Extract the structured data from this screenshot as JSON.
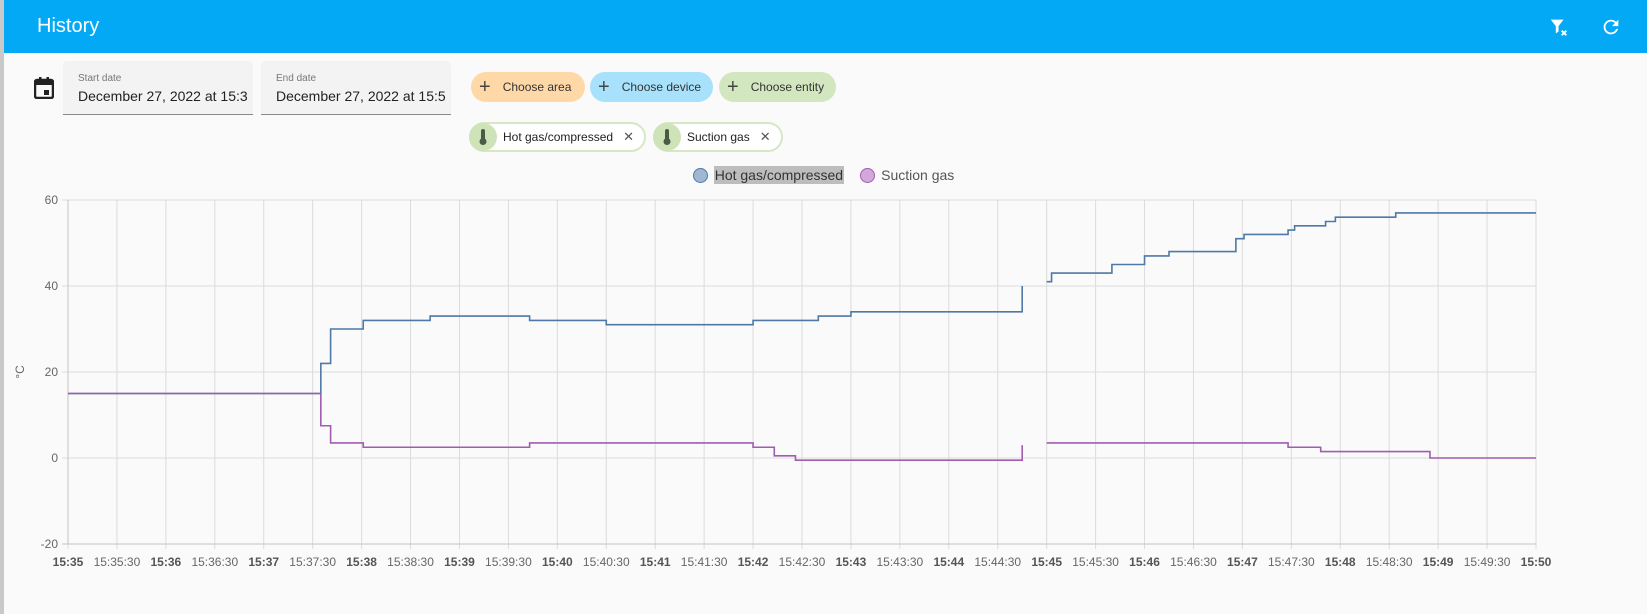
{
  "header": {
    "title": "History",
    "actions": [
      {
        "name": "clear-filter-icon",
        "label": "Clear filters"
      },
      {
        "name": "refresh-icon",
        "label": "Refresh"
      }
    ]
  },
  "filters": {
    "calendar_icon": "calendar-icon",
    "start_date": {
      "label": "Start date",
      "value": "December 27, 2022 at 15:3"
    },
    "end_date": {
      "label": "End date",
      "value": "December 27, 2022 at 15:5"
    },
    "pickers": [
      {
        "label": "Choose area",
        "color": "#ffd8a8"
      },
      {
        "label": "Choose device",
        "color": "#a8e1fb"
      },
      {
        "label": "Choose entity",
        "color": "#d2e7bf"
      }
    ],
    "entities": [
      {
        "label": "Hot gas/compressed",
        "icon": "thermometer-icon"
      },
      {
        "label": "Suction gas",
        "icon": "thermometer-icon"
      }
    ]
  },
  "legend": [
    {
      "label": "Hot gas/compressed",
      "color": "#4e79a7",
      "fill": "#9fb7d1"
    },
    {
      "label": "Suction gas",
      "color": "#a05db0",
      "fill": "#d2a8da"
    }
  ],
  "chart_data": {
    "type": "line",
    "step": true,
    "title": "",
    "xlabel": "",
    "ylabel": "°C",
    "ylim": [
      -20,
      60
    ],
    "yticks": [
      60,
      40,
      20,
      0,
      -20
    ],
    "xlim": [
      "15:35",
      "15:50"
    ],
    "xticks": [
      "15:35",
      "15:35:30",
      "15:36",
      "15:36:30",
      "15:37",
      "15:37:30",
      "15:38",
      "15:38:30",
      "15:39",
      "15:39:30",
      "15:40",
      "15:40:30",
      "15:41",
      "15:41:30",
      "15:42",
      "15:42:30",
      "15:43",
      "15:43:30",
      "15:44",
      "15:44:30",
      "15:45",
      "15:45:30",
      "15:46",
      "15:46:30",
      "15:47",
      "15:47:30",
      "15:48",
      "15:48:30",
      "15:49",
      "15:49:30",
      "15:50"
    ],
    "grid": true,
    "legend_position": "top",
    "series": [
      {
        "name": "Hot gas/compressed",
        "color": "#4e79a7",
        "segments": [
          [
            [
              "15:35:00",
              15
            ],
            [
              "15:37:35",
              22
            ],
            [
              "15:37:41",
              30
            ],
            [
              "15:38:01",
              32
            ],
            [
              "15:38:42",
              33
            ],
            [
              "15:39:43",
              32
            ],
            [
              "15:40:30",
              31
            ],
            [
              "15:42:00",
              32
            ],
            [
              "15:42:40",
              33
            ],
            [
              "15:43:00",
              34
            ],
            [
              "15:44:45",
              40
            ]
          ],
          [
            [
              "15:45:00",
              41
            ],
            [
              "15:45:03",
              43
            ],
            [
              "15:45:40",
              45
            ],
            [
              "15:46:00",
              47
            ],
            [
              "15:46:15",
              48
            ],
            [
              "15:46:56",
              51
            ],
            [
              "15:47:01",
              52
            ],
            [
              "15:47:28",
              53
            ],
            [
              "15:47:32",
              54
            ],
            [
              "15:47:51",
              55
            ],
            [
              "15:47:57",
              56
            ],
            [
              "15:48:34",
              57
            ],
            [
              "15:50:00",
              57
            ]
          ]
        ]
      },
      {
        "name": "Suction gas",
        "color": "#a05db0",
        "segments": [
          [
            [
              "15:35:00",
              15
            ],
            [
              "15:37:35",
              7.5
            ],
            [
              "15:37:41",
              3.5
            ],
            [
              "15:38:01",
              2.5
            ],
            [
              "15:39:43",
              3.5
            ],
            [
              "15:42:00",
              2.5
            ],
            [
              "15:42:13",
              0.5
            ],
            [
              "15:42:26",
              -0.5
            ],
            [
              "15:44:45",
              3
            ]
          ],
          [
            [
              "15:45:00",
              3.5
            ],
            [
              "15:47:28",
              2.5
            ],
            [
              "15:47:48",
              1.5
            ],
            [
              "15:48:55",
              0
            ],
            [
              "15:50:00",
              0
            ]
          ]
        ]
      }
    ]
  }
}
